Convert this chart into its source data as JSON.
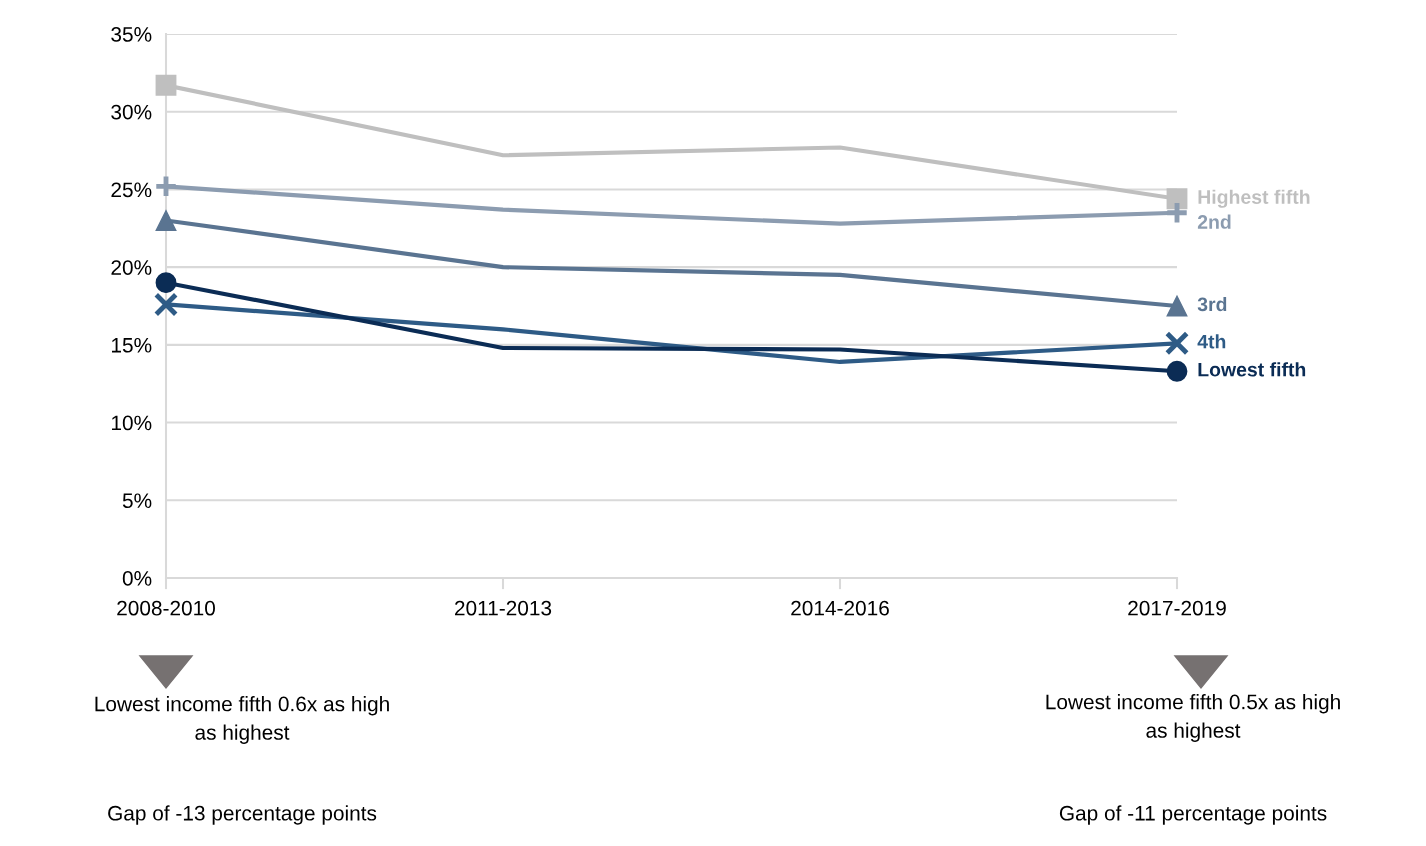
{
  "chart_data": {
    "type": "line",
    "categories": [
      "2008-2010",
      "2011-2013",
      "2014-2016",
      "2017-2019"
    ],
    "ylim": [
      0,
      35
    ],
    "yticks": [
      {
        "value": 0,
        "label": "0%"
      },
      {
        "value": 5,
        "label": "5%"
      },
      {
        "value": 10,
        "label": "10%"
      },
      {
        "value": 15,
        "label": "15%"
      },
      {
        "value": 20,
        "label": "20%"
      },
      {
        "value": 25,
        "label": "25%"
      },
      {
        "value": 30,
        "label": "30%"
      },
      {
        "value": 35,
        "label": "35%"
      }
    ],
    "grid": "y",
    "series": [
      {
        "name": "Highest fifth",
        "color": "#bfbfbf",
        "marker": "square",
        "values": [
          31.7,
          27.2,
          27.7,
          24.4
        ]
      },
      {
        "name": "2nd",
        "color": "#8c9cb0",
        "marker": "plus",
        "values": [
          25.2,
          23.7,
          22.8,
          23.5
        ]
      },
      {
        "name": "3rd",
        "color": "#5a7491",
        "marker": "triangle",
        "values": [
          23.0,
          20.0,
          19.5,
          17.5
        ]
      },
      {
        "name": "4th",
        "color": "#2e5b86",
        "marker": "cross",
        "values": [
          17.6,
          16.0,
          13.9,
          15.1
        ]
      },
      {
        "name": "Lowest fifth",
        "color": "#0b2c55",
        "marker": "circle",
        "values": [
          19.0,
          14.8,
          14.7,
          13.3
        ]
      }
    ],
    "annotations": [
      "Lowest income fifth 0.6x as high\nas highest",
      "Gap of -13 percentage points",
      "Lowest income fifth 0.5x as high\nas highest",
      "Gap of -11 percentage points"
    ]
  }
}
